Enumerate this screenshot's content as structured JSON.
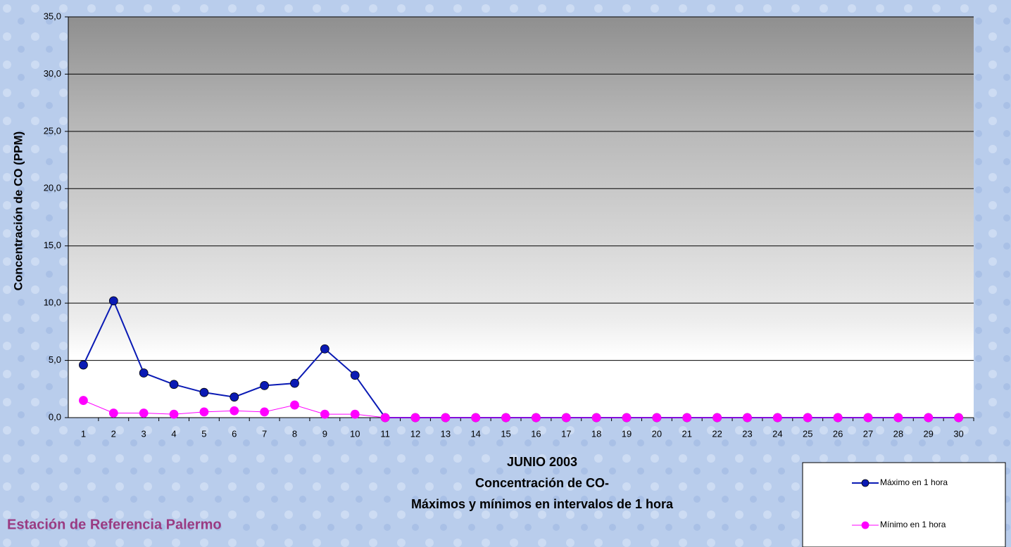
{
  "chart_data": {
    "type": "line",
    "title": "JUNIO 2003",
    "subtitle": [
      "Concentración de CO-",
      "Máximos y mínimos en intervalos de 1 hora"
    ],
    "station": "Estación de Referencia Palermo",
    "y_label": "Concentración de CO (PPM)",
    "categories": [
      "1",
      "2",
      "3",
      "4",
      "5",
      "6",
      "7",
      "8",
      "9",
      "10",
      "11",
      "12",
      "13",
      "14",
      "15",
      "16",
      "17",
      "18",
      "19",
      "20",
      "21",
      "22",
      "23",
      "24",
      "25",
      "26",
      "27",
      "28",
      "29",
      "30"
    ],
    "series": [
      {
        "name": "Máximo en 1 hora",
        "color": "#0a1ab4",
        "values": [
          4.6,
          10.2,
          3.9,
          2.9,
          2.2,
          1.8,
          2.8,
          3.0,
          6.0,
          3.7,
          0,
          0,
          0,
          0,
          0,
          0,
          0,
          0,
          0,
          0,
          0,
          0,
          0,
          0,
          0,
          0,
          0,
          0,
          0,
          0
        ]
      },
      {
        "name": "Mínimo en 1 hora",
        "color": "#ff00ff",
        "values": [
          1.5,
          0.4,
          0.4,
          0.3,
          0.5,
          0.6,
          0.5,
          1.1,
          0.3,
          0.3,
          0,
          0,
          0,
          0,
          0,
          0,
          0,
          0,
          0,
          0,
          0,
          0,
          0,
          0,
          0,
          0,
          0,
          0,
          0,
          0
        ]
      }
    ],
    "ylim": [
      0,
      35
    ],
    "yticks": [
      {
        "value": 0,
        "label": "0,0"
      },
      {
        "value": 5,
        "label": "5,0"
      },
      {
        "value": 10,
        "label": "10,0"
      },
      {
        "value": 15,
        "label": "15,0"
      },
      {
        "value": 20,
        "label": "20,0"
      },
      {
        "value": 25,
        "label": "25,0"
      },
      {
        "value": 30,
        "label": "30,0"
      },
      {
        "value": 35,
        "label": "35,0"
      }
    ],
    "grid": true
  }
}
